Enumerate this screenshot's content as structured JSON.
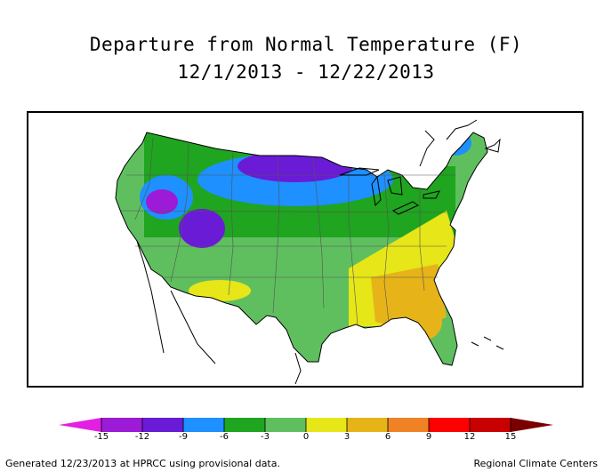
{
  "title": {
    "line1": "Departure from Normal Temperature (F)",
    "line2": "12/1/2013 - 12/22/2013"
  },
  "legend": {
    "ticks": [
      "-15",
      "-12",
      "-9",
      "-6",
      "-3",
      "0",
      "3",
      "6",
      "9",
      "12",
      "15"
    ],
    "colors": {
      "below_15": "#e31fe3",
      "m15_m12": "#9b1bd6",
      "m12_m9": "#6a1bd6",
      "m9_m6": "#1e90ff",
      "m6_m3": "#1fa51f",
      "m3_0": "#5fbf5f",
      "0_3": "#e6e619",
      "3_6": "#e6b419",
      "6_9": "#f08226",
      "9_12": "#ff0000",
      "12_15": "#c80000",
      "above_15": "#7a0000"
    }
  },
  "footer": {
    "left": "Generated 12/23/2013 at HPRCC using provisional data.",
    "right": "Regional Climate Centers"
  }
}
